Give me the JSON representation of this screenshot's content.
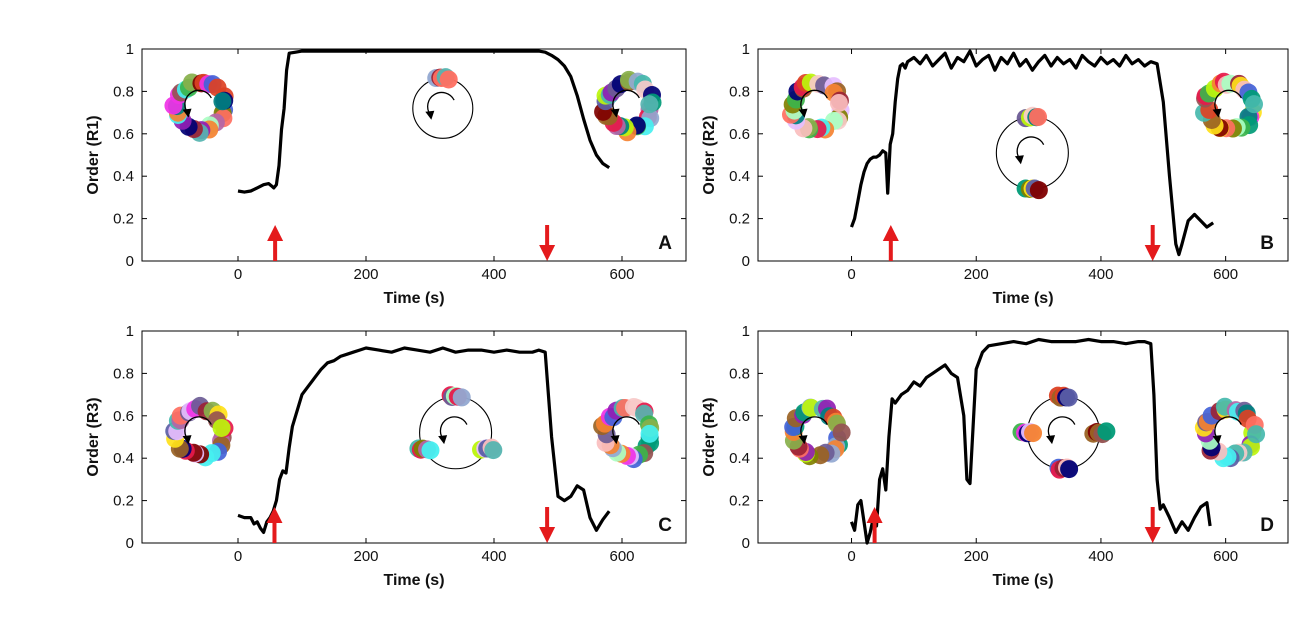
{
  "colors": {
    "line": "#000000",
    "arrow": "#e41a1c",
    "axis": "#000000",
    "palette": [
      "#e6194b",
      "#3cb44b",
      "#ffe119",
      "#4363d8",
      "#f58231",
      "#911eb4",
      "#46f0f0",
      "#f032e6",
      "#bcf60c",
      "#fabebe",
      "#008080",
      "#e6beff",
      "#9a6324",
      "#800000",
      "#aaffc3",
      "#808000",
      "#000075",
      "#ff6f61",
      "#6b5b95",
      "#88b04b",
      "#92a8d1",
      "#f7cac9",
      "#955251",
      "#b565a7",
      "#009b77",
      "#dd4124",
      "#45b8ac",
      "#5b5ea6",
      "#9b2335",
      "#55b4b0"
    ]
  },
  "chart_data": [
    {
      "type": "line",
      "panel_label": "A",
      "xlabel": "Time  (s)",
      "ylabel": "Order (R1)",
      "xlim": [
        -150,
        700
      ],
      "ylim": [
        0,
        1
      ],
      "xticks": [
        0,
        200,
        400,
        600
      ],
      "yticks": [
        0,
        0.2,
        0.4,
        0.6,
        0.8,
        1
      ],
      "x": [
        0,
        10,
        20,
        30,
        40,
        48,
        52,
        56,
        60,
        64,
        68,
        72,
        76,
        80,
        90,
        100,
        200,
        300,
        400,
        450,
        470,
        480,
        490,
        500,
        510,
        520,
        530,
        540,
        550,
        560,
        570,
        580
      ],
      "y": [
        0.33,
        0.325,
        0.33,
        0.345,
        0.36,
        0.365,
        0.355,
        0.345,
        0.36,
        0.45,
        0.62,
        0.72,
        0.9,
        0.98,
        0.985,
        0.99,
        0.99,
        0.99,
        0.99,
        0.99,
        0.99,
        0.985,
        0.97,
        0.95,
        0.92,
        0.87,
        0.78,
        0.67,
        0.57,
        0.5,
        0.46,
        0.44
      ],
      "arrows": [
        {
          "x": 58,
          "dir": "up"
        },
        {
          "x": 483,
          "dir": "down"
        }
      ],
      "insets": [
        {
          "pos": "left",
          "state": "incoherent",
          "clusters": 1
        },
        {
          "pos": "center",
          "state": "one-cluster",
          "clusters": 1
        },
        {
          "pos": "right",
          "state": "incoherent",
          "clusters": 1
        }
      ]
    },
    {
      "type": "line",
      "panel_label": "B",
      "xlabel": "Time  (s)",
      "ylabel": "Order (R2)",
      "xlim": [
        -150,
        700
      ],
      "ylim": [
        0,
        1
      ],
      "xticks": [
        0,
        200,
        400,
        600
      ],
      "yticks": [
        0,
        0.2,
        0.4,
        0.6,
        0.8,
        1
      ],
      "x": [
        0,
        5,
        10,
        15,
        20,
        25,
        30,
        35,
        40,
        45,
        50,
        55,
        58,
        62,
        66,
        70,
        74,
        78,
        82,
        86,
        90,
        100,
        110,
        120,
        130,
        140,
        150,
        160,
        170,
        180,
        190,
        200,
        210,
        220,
        230,
        240,
        250,
        260,
        270,
        280,
        290,
        300,
        310,
        320,
        330,
        340,
        350,
        360,
        370,
        380,
        390,
        400,
        410,
        420,
        430,
        440,
        450,
        460,
        470,
        480,
        490,
        500,
        510,
        520,
        525,
        530,
        540,
        550,
        560,
        570,
        580
      ],
      "y": [
        0.16,
        0.2,
        0.28,
        0.36,
        0.42,
        0.46,
        0.48,
        0.49,
        0.49,
        0.5,
        0.52,
        0.51,
        0.32,
        0.55,
        0.6,
        0.75,
        0.86,
        0.92,
        0.93,
        0.91,
        0.94,
        0.96,
        0.93,
        0.97,
        0.92,
        0.95,
        0.98,
        0.91,
        0.96,
        0.94,
        0.99,
        0.92,
        0.95,
        0.97,
        0.9,
        0.96,
        0.93,
        0.98,
        0.92,
        0.95,
        0.9,
        0.94,
        0.97,
        0.92,
        0.96,
        0.93,
        0.95,
        0.91,
        0.97,
        0.94,
        0.92,
        0.96,
        0.93,
        0.95,
        0.92,
        0.97,
        0.93,
        0.95,
        0.92,
        0.94,
        0.93,
        0.75,
        0.4,
        0.08,
        0.03,
        0.08,
        0.19,
        0.22,
        0.19,
        0.16,
        0.18
      ],
      "arrows": [
        {
          "x": 63,
          "dir": "up"
        },
        {
          "x": 483,
          "dir": "down"
        }
      ],
      "insets": [
        {
          "pos": "left",
          "state": "incoherent",
          "clusters": 1
        },
        {
          "pos": "center",
          "state": "two-cluster",
          "clusters": 2
        },
        {
          "pos": "right",
          "state": "incoherent",
          "clusters": 1
        }
      ]
    },
    {
      "type": "line",
      "panel_label": "C",
      "xlabel": "Time  (s)",
      "ylabel": "Order (R3)",
      "xlim": [
        -150,
        700
      ],
      "ylim": [
        0,
        1
      ],
      "xticks": [
        0,
        200,
        400,
        600
      ],
      "yticks": [
        0,
        0.2,
        0.4,
        0.6,
        0.8,
        1
      ],
      "x": [
        0,
        10,
        20,
        25,
        30,
        35,
        40,
        45,
        50,
        55,
        60,
        65,
        70,
        75,
        80,
        85,
        90,
        95,
        100,
        110,
        120,
        130,
        140,
        150,
        160,
        170,
        180,
        190,
        200,
        220,
        240,
        260,
        280,
        300,
        320,
        340,
        360,
        380,
        400,
        420,
        440,
        460,
        470,
        480,
        490,
        500,
        510,
        520,
        530,
        540,
        550,
        560,
        570,
        580
      ],
      "y": [
        0.13,
        0.12,
        0.12,
        0.09,
        0.1,
        0.07,
        0.05,
        0.1,
        0.12,
        0.15,
        0.2,
        0.3,
        0.34,
        0.33,
        0.45,
        0.55,
        0.6,
        0.65,
        0.7,
        0.74,
        0.78,
        0.82,
        0.85,
        0.86,
        0.88,
        0.89,
        0.9,
        0.91,
        0.92,
        0.91,
        0.9,
        0.92,
        0.91,
        0.9,
        0.92,
        0.9,
        0.91,
        0.91,
        0.9,
        0.91,
        0.9,
        0.9,
        0.91,
        0.9,
        0.5,
        0.22,
        0.2,
        0.22,
        0.27,
        0.25,
        0.12,
        0.06,
        0.11,
        0.15
      ],
      "arrows": [
        {
          "x": 57,
          "dir": "up"
        },
        {
          "x": 483,
          "dir": "down"
        }
      ],
      "insets": [
        {
          "pos": "left",
          "state": "incoherent",
          "clusters": 1
        },
        {
          "pos": "center",
          "state": "three-cluster",
          "clusters": 3
        },
        {
          "pos": "right",
          "state": "incoherent",
          "clusters": 1
        }
      ]
    },
    {
      "type": "line",
      "panel_label": "D",
      "xlabel": "Time  (s)",
      "ylabel": "Order (R4)",
      "xlim": [
        -150,
        700
      ],
      "ylim": [
        0,
        1
      ],
      "xticks": [
        0,
        200,
        400,
        600
      ],
      "yticks": [
        0,
        0.2,
        0.4,
        0.6,
        0.8,
        1
      ],
      "x": [
        0,
        5,
        10,
        15,
        20,
        25,
        30,
        35,
        40,
        45,
        50,
        55,
        60,
        65,
        70,
        80,
        90,
        100,
        110,
        120,
        130,
        140,
        150,
        160,
        170,
        180,
        185,
        190,
        195,
        200,
        210,
        220,
        240,
        260,
        280,
        300,
        320,
        340,
        360,
        380,
        400,
        420,
        440,
        460,
        470,
        480,
        485,
        490,
        495,
        500,
        510,
        520,
        530,
        540,
        550,
        560,
        570,
        575
      ],
      "y": [
        0.1,
        0.06,
        0.18,
        0.2,
        0.1,
        0.0,
        0.05,
        0.12,
        0.08,
        0.3,
        0.35,
        0.25,
        0.5,
        0.68,
        0.66,
        0.7,
        0.72,
        0.76,
        0.74,
        0.78,
        0.8,
        0.82,
        0.84,
        0.8,
        0.78,
        0.6,
        0.3,
        0.28,
        0.55,
        0.82,
        0.9,
        0.93,
        0.94,
        0.95,
        0.94,
        0.96,
        0.95,
        0.95,
        0.95,
        0.96,
        0.95,
        0.95,
        0.94,
        0.95,
        0.95,
        0.94,
        0.7,
        0.3,
        0.16,
        0.18,
        0.12,
        0.05,
        0.1,
        0.06,
        0.12,
        0.17,
        0.19,
        0.08
      ],
      "arrows": [
        {
          "x": 37,
          "dir": "up"
        },
        {
          "x": 483,
          "dir": "down"
        }
      ],
      "insets": [
        {
          "pos": "left",
          "state": "incoherent",
          "clusters": 1
        },
        {
          "pos": "center",
          "state": "four-cluster",
          "clusters": 4
        },
        {
          "pos": "right",
          "state": "incoherent",
          "clusters": 1
        }
      ]
    }
  ]
}
